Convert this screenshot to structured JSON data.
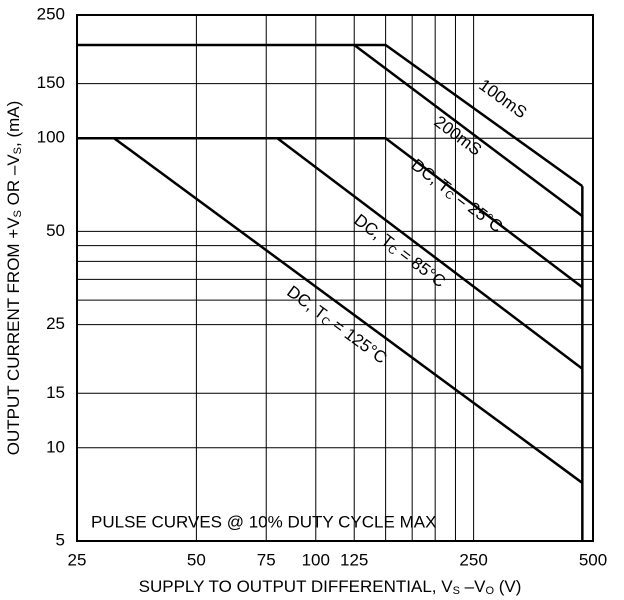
{
  "chart_data": {
    "type": "line",
    "xlabel": [
      "SUPPLY TO OUTPUT DIFFERENTIAL, V",
      "S",
      " –V",
      "O",
      " (V)"
    ],
    "ylabel": [
      "OUTPUT CURRENT FROM +V",
      "S",
      " OR –V",
      "S",
      ", (mA)"
    ],
    "annotation": "PULSE CURVES @ 10% DUTY CYCLE MAX",
    "xscale": "log",
    "yscale": "log",
    "grid": true,
    "xlim": [
      25,
      500
    ],
    "ylim": [
      5,
      250
    ],
    "xticks": [
      25,
      50,
      75,
      100,
      125,
      250,
      500
    ],
    "xgrid_minor": [
      150,
      175,
      200,
      225
    ],
    "yticks": [
      5,
      10,
      15,
      25,
      50,
      100,
      150,
      250
    ],
    "ygrid_minor": [
      30,
      35,
      40,
      45
    ],
    "color": "#000000",
    "series": [
      {
        "label": [
          "100mS"
        ],
        "x": [
          25,
          150,
          470
        ],
        "values": [
          200,
          200,
          70
        ]
      },
      {
        "label": [
          "200mS"
        ],
        "x": [
          125,
          470
        ],
        "values": [
          200,
          56
        ]
      },
      {
        "label": [
          "DC, T",
          "C",
          " = 25°C"
        ],
        "x": [
          25,
          150,
          470
        ],
        "values": [
          100,
          100,
          33
        ]
      },
      {
        "label": [
          "DC, T",
          "C",
          " = 85°C"
        ],
        "x": [
          80,
          470
        ],
        "values": [
          100,
          18
        ]
      },
      {
        "label": [
          "DC, T",
          "C",
          " = 125°C"
        ],
        "x": [
          31,
          470
        ],
        "values": [
          100,
          7.7
        ]
      },
      {
        "x": [
          470,
          470
        ],
        "values": [
          70,
          5
        ]
      }
    ]
  }
}
